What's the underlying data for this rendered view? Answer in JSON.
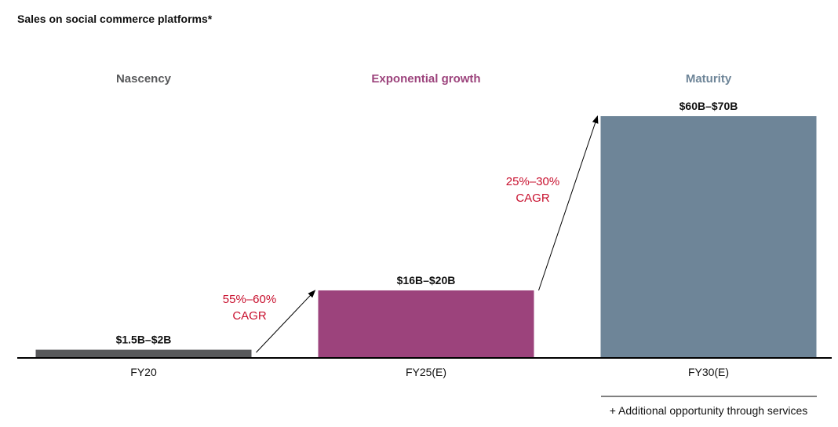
{
  "chart_data": {
    "type": "bar",
    "title": "Sales on social commerce platforms*",
    "categories": [
      "FY20",
      "FY25(E)",
      "FY30(E)"
    ],
    "phases": [
      "Nascency",
      "Exponential growth",
      "Maturity"
    ],
    "value_labels": [
      "$1.5B–$2B",
      "$16B–$20B",
      "$60B–$70B"
    ],
    "values": [
      2,
      18,
      65
    ],
    "ylim": [
      0,
      65
    ],
    "colors": [
      "#58595b",
      "#9c437c",
      "#6e8598"
    ],
    "phase_colors": [
      "#58595b",
      "#9c437c",
      "#6e8598"
    ],
    "growth_labels": [
      {
        "line1": "55%–60%",
        "line2": "CAGR"
      },
      {
        "line1": "25%–30%",
        "line2": "CAGR"
      }
    ],
    "growth_color": "#c8102e",
    "footnote": "+ Additional opportunity through services",
    "grid": false,
    "legend": "none"
  }
}
